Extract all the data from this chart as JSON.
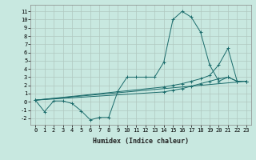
{
  "background_color": "#c8e8e0",
  "grid_color": "#b0c8c0",
  "line_color": "#1a6b6b",
  "xlabel": "Humidex (Indice chaleur)",
  "xlim": [
    -0.5,
    23.5
  ],
  "ylim": [
    -2.8,
    11.8
  ],
  "xticks": [
    0,
    1,
    2,
    3,
    4,
    5,
    6,
    7,
    8,
    9,
    10,
    11,
    12,
    13,
    14,
    15,
    16,
    17,
    18,
    19,
    20,
    21,
    22,
    23
  ],
  "yticks": [
    -2,
    -1,
    0,
    1,
    2,
    3,
    4,
    5,
    6,
    7,
    8,
    9,
    10,
    11
  ],
  "series1": [
    [
      0,
      0.2
    ],
    [
      1,
      -1.2
    ],
    [
      2,
      0.1
    ],
    [
      3,
      0.1
    ],
    [
      4,
      -0.2
    ],
    [
      5,
      -1.1
    ],
    [
      6,
      -2.2
    ],
    [
      7,
      -1.9
    ],
    [
      8,
      -1.9
    ],
    [
      9,
      1.3
    ],
    [
      10,
      3.0
    ],
    [
      11,
      3.0
    ],
    [
      12,
      3.0
    ],
    [
      13,
      3.0
    ],
    [
      14,
      4.8
    ],
    [
      15,
      10.0
    ],
    [
      16,
      11.0
    ],
    [
      17,
      10.3
    ],
    [
      18,
      8.5
    ],
    [
      19,
      4.5
    ],
    [
      20,
      2.5
    ],
    [
      21,
      3.0
    ],
    [
      22,
      2.5
    ],
    [
      23,
      2.5
    ]
  ],
  "series2": [
    [
      0,
      0.2
    ],
    [
      14,
      1.8
    ],
    [
      15,
      2.0
    ],
    [
      16,
      2.2
    ],
    [
      17,
      2.5
    ],
    [
      18,
      2.8
    ],
    [
      19,
      3.2
    ],
    [
      20,
      4.5
    ],
    [
      21,
      6.5
    ],
    [
      22,
      2.5
    ],
    [
      23,
      2.5
    ]
  ],
  "series3": [
    [
      0,
      0.2
    ],
    [
      14,
      1.2
    ],
    [
      15,
      1.4
    ],
    [
      16,
      1.6
    ],
    [
      17,
      1.9
    ],
    [
      18,
      2.2
    ],
    [
      19,
      2.5
    ],
    [
      20,
      2.8
    ],
    [
      21,
      3.0
    ],
    [
      22,
      2.5
    ],
    [
      23,
      2.5
    ]
  ],
  "series4": [
    [
      0,
      0.2
    ],
    [
      23,
      2.5
    ]
  ],
  "xlabel_fontsize": 6,
  "tick_fontsize": 5
}
